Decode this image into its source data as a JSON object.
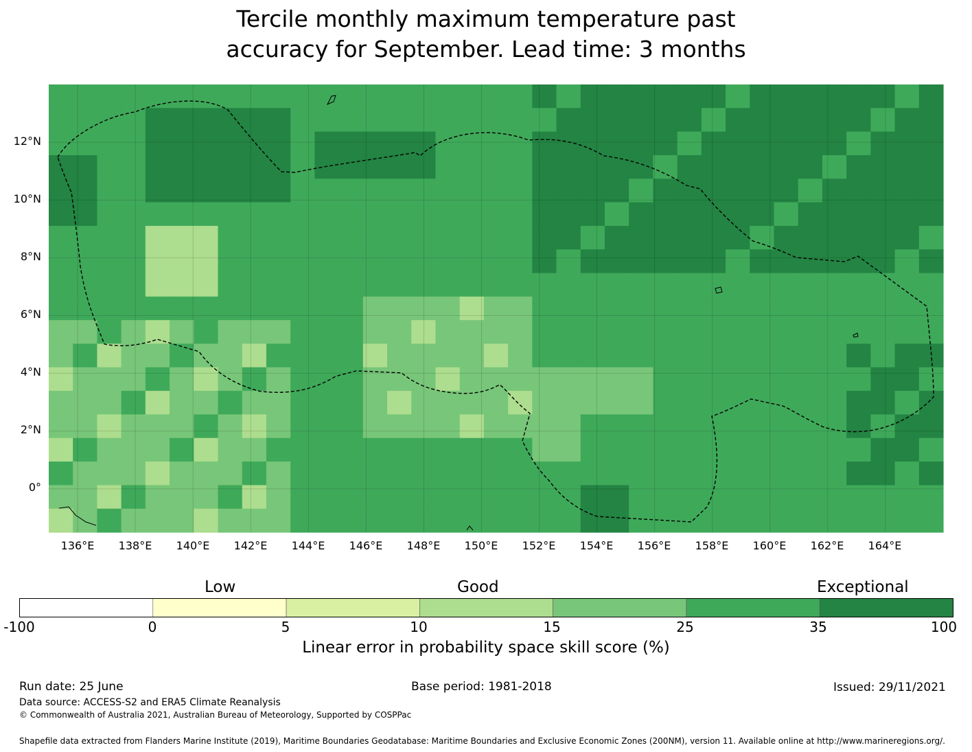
{
  "title": {
    "line1": "Tercile monthly maximum temperature past",
    "line2": "accuracy for September. Lead time: 3 months"
  },
  "map": {
    "lat_labels": [
      "12°N",
      "10°N",
      "8°N",
      "6°N",
      "4°N",
      "2°N",
      "0°"
    ],
    "lon_labels": [
      "136°E",
      "138°E",
      "140°E",
      "142°E",
      "144°E",
      "146°E",
      "148°E",
      "150°E",
      "152°E",
      "154°E",
      "156°E",
      "158°E",
      "160°E",
      "162°E",
      "164°E"
    ],
    "lon_range": [
      135,
      166
    ],
    "lat_range": [
      -1.5,
      14
    ],
    "gridlines": true,
    "eez_boundary_style": "dashed",
    "color_classes": {
      "15-25": "#78c679",
      "25-35": "#3fa95a",
      "35-100": "#238443"
    }
  },
  "colorbar": {
    "categories": [
      "Low",
      "Good",
      "Exceptional"
    ],
    "ticks": [
      "-100",
      "0",
      "5",
      "10",
      "15",
      "25",
      "35",
      "100"
    ],
    "colors": [
      "#ffffff",
      "#ffffcc",
      "#d9f0a3",
      "#addd8e",
      "#78c679",
      "#3fa95a",
      "#238443"
    ],
    "title": "Linear error in probability space skill score (%)"
  },
  "footer": {
    "run_date": "Run date: 25 June",
    "base_period": "Base period: 1981-2018",
    "issued": "Issued: 29/11/2021",
    "data_source": "Data source: ACCESS-S2 and ERA5 Climate Reanalysis",
    "copyright": "© Commonwealth of Australia 2021, Australian Bureau of Meteorology, Supported by COSPPac",
    "shapefile": "Shapefile data extracted from Flanders Marine Institute (2019), Maritime Boundaries Geodatabase: Maritime Boundaries and Exclusive Economic Zones (200NM), version 11. Available online at http://www.marineregions.org/."
  }
}
